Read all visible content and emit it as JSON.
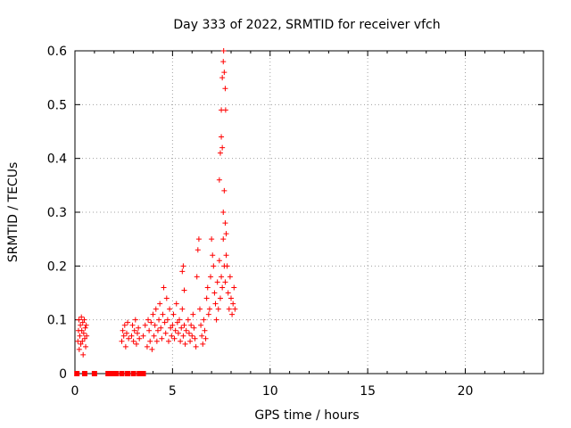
{
  "chart_data": {
    "type": "scatter",
    "title": "Day 333 of 2022, SRMTID for receiver vfch",
    "xlabel": "GPS time / hours",
    "ylabel": "SRMTID / TECUs",
    "xlim": [
      0,
      24
    ],
    "ylim": [
      0,
      0.6
    ],
    "x_ticks": [
      "0",
      "5",
      "10",
      "15",
      "20"
    ],
    "y_ticks": [
      "0",
      "0.1",
      "0.2",
      "0.3",
      "0.4",
      "0.5",
      "0.6"
    ],
    "grid": true,
    "marker": "+",
    "color": "#ff0000",
    "series": [
      {
        "name": "SRMTID",
        "points": [
          [
            0.1,
            0.0
          ],
          [
            0.5,
            0.0
          ],
          [
            1.0,
            0.0
          ],
          [
            1.7,
            0.0
          ],
          [
            1.9,
            0.0
          ],
          [
            2.0,
            0.0
          ],
          [
            2.1,
            0.0
          ],
          [
            2.4,
            0.0
          ],
          [
            2.7,
            0.0
          ],
          [
            3.0,
            0.0
          ],
          [
            3.3,
            0.0
          ],
          [
            3.5,
            0.0
          ],
          [
            0.15,
            0.06
          ],
          [
            0.18,
            0.08
          ],
          [
            0.2,
            0.1
          ],
          [
            0.22,
            0.045
          ],
          [
            0.25,
            0.07
          ],
          [
            0.28,
            0.09
          ],
          [
            0.3,
            0.055
          ],
          [
            0.33,
            0.105
          ],
          [
            0.35,
            0.08
          ],
          [
            0.38,
            0.06
          ],
          [
            0.4,
            0.095
          ],
          [
            0.42,
            0.035
          ],
          [
            0.45,
            0.075
          ],
          [
            0.48,
            0.1
          ],
          [
            0.5,
            0.065
          ],
          [
            0.53,
            0.085
          ],
          [
            0.55,
            0.05
          ],
          [
            0.58,
            0.09
          ],
          [
            0.6,
            0.07
          ],
          [
            2.4,
            0.06
          ],
          [
            2.45,
            0.08
          ],
          [
            2.5,
            0.07
          ],
          [
            2.55,
            0.09
          ],
          [
            2.6,
            0.05
          ],
          [
            2.65,
            0.075
          ],
          [
            2.7,
            0.095
          ],
          [
            2.75,
            0.065
          ],
          [
            2.9,
            0.07
          ],
          [
            2.95,
            0.09
          ],
          [
            3.0,
            0.06
          ],
          [
            3.05,
            0.08
          ],
          [
            3.1,
            0.1
          ],
          [
            3.15,
            0.055
          ],
          [
            3.2,
            0.075
          ],
          [
            3.25,
            0.085
          ],
          [
            3.3,
            0.065
          ],
          [
            3.5,
            0.07
          ],
          [
            3.6,
            0.09
          ],
          [
            3.7,
            0.05
          ],
          [
            3.75,
            0.1
          ],
          [
            3.8,
            0.08
          ],
          [
            3.85,
            0.06
          ],
          [
            3.9,
            0.095
          ],
          [
            3.95,
            0.045
          ],
          [
            4.0,
            0.11
          ],
          [
            4.05,
            0.07
          ],
          [
            4.1,
            0.09
          ],
          [
            4.15,
            0.12
          ],
          [
            4.2,
            0.06
          ],
          [
            4.25,
            0.08
          ],
          [
            4.3,
            0.1
          ],
          [
            4.35,
            0.13
          ],
          [
            4.4,
            0.085
          ],
          [
            4.45,
            0.065
          ],
          [
            4.5,
            0.11
          ],
          [
            4.55,
            0.16
          ],
          [
            4.6,
            0.095
          ],
          [
            4.65,
            0.075
          ],
          [
            4.7,
            0.14
          ],
          [
            4.75,
            0.1
          ],
          [
            4.8,
            0.06
          ],
          [
            4.85,
            0.12
          ],
          [
            4.9,
            0.085
          ],
          [
            4.95,
            0.07
          ],
          [
            5.0,
            0.09
          ],
          [
            5.05,
            0.11
          ],
          [
            5.1,
            0.065
          ],
          [
            5.15,
            0.08
          ],
          [
            5.2,
            0.13
          ],
          [
            5.25,
            0.095
          ],
          [
            5.3,
            0.075
          ],
          [
            5.35,
            0.1
          ],
          [
            5.4,
            0.06
          ],
          [
            5.45,
            0.085
          ],
          [
            5.5,
            0.12
          ],
          [
            5.55,
            0.07
          ],
          [
            5.6,
            0.09
          ],
          [
            5.65,
            0.055
          ],
          [
            5.7,
            0.08
          ],
          [
            5.5,
            0.19
          ],
          [
            5.55,
            0.2
          ],
          [
            5.6,
            0.155
          ],
          [
            5.8,
            0.1
          ],
          [
            5.85,
            0.075
          ],
          [
            5.9,
            0.06
          ],
          [
            5.95,
            0.09
          ],
          [
            6.0,
            0.07
          ],
          [
            6.05,
            0.11
          ],
          [
            6.1,
            0.085
          ],
          [
            6.15,
            0.065
          ],
          [
            6.2,
            0.05
          ],
          [
            6.25,
            0.18
          ],
          [
            6.3,
            0.23
          ],
          [
            6.35,
            0.25
          ],
          [
            6.4,
            0.12
          ],
          [
            6.45,
            0.09
          ],
          [
            6.5,
            0.07
          ],
          [
            6.55,
            0.055
          ],
          [
            6.6,
            0.1
          ],
          [
            6.65,
            0.08
          ],
          [
            6.7,
            0.065
          ],
          [
            6.75,
            0.14
          ],
          [
            6.8,
            0.16
          ],
          [
            6.85,
            0.11
          ],
          [
            6.9,
            0.12
          ],
          [
            6.95,
            0.18
          ],
          [
            7.0,
            0.25
          ],
          [
            7.05,
            0.22
          ],
          [
            7.1,
            0.2
          ],
          [
            7.15,
            0.15
          ],
          [
            7.2,
            0.13
          ],
          [
            7.25,
            0.1
          ],
          [
            7.3,
            0.17
          ],
          [
            7.35,
            0.12
          ],
          [
            7.4,
            0.21
          ],
          [
            7.45,
            0.14
          ],
          [
            7.5,
            0.18
          ],
          [
            7.55,
            0.16
          ],
          [
            7.6,
            0.25
          ],
          [
            7.65,
            0.2
          ],
          [
            7.7,
            0.17
          ],
          [
            7.75,
            0.22
          ],
          [
            7.4,
            0.36
          ],
          [
            7.45,
            0.41
          ],
          [
            7.5,
            0.44
          ],
          [
            7.55,
            0.42
          ],
          [
            7.6,
            0.3
          ],
          [
            7.65,
            0.34
          ],
          [
            7.7,
            0.28
          ],
          [
            7.75,
            0.26
          ],
          [
            7.5,
            0.49
          ],
          [
            7.55,
            0.55
          ],
          [
            7.6,
            0.58
          ],
          [
            7.62,
            0.6
          ],
          [
            7.65,
            0.56
          ],
          [
            7.7,
            0.53
          ],
          [
            7.72,
            0.49
          ],
          [
            7.8,
            0.2
          ],
          [
            7.85,
            0.15
          ],
          [
            7.9,
            0.12
          ],
          [
            7.95,
            0.18
          ],
          [
            8.0,
            0.14
          ],
          [
            8.05,
            0.11
          ],
          [
            8.1,
            0.13
          ],
          [
            8.15,
            0.16
          ],
          [
            8.2,
            0.12
          ]
        ]
      }
    ]
  }
}
